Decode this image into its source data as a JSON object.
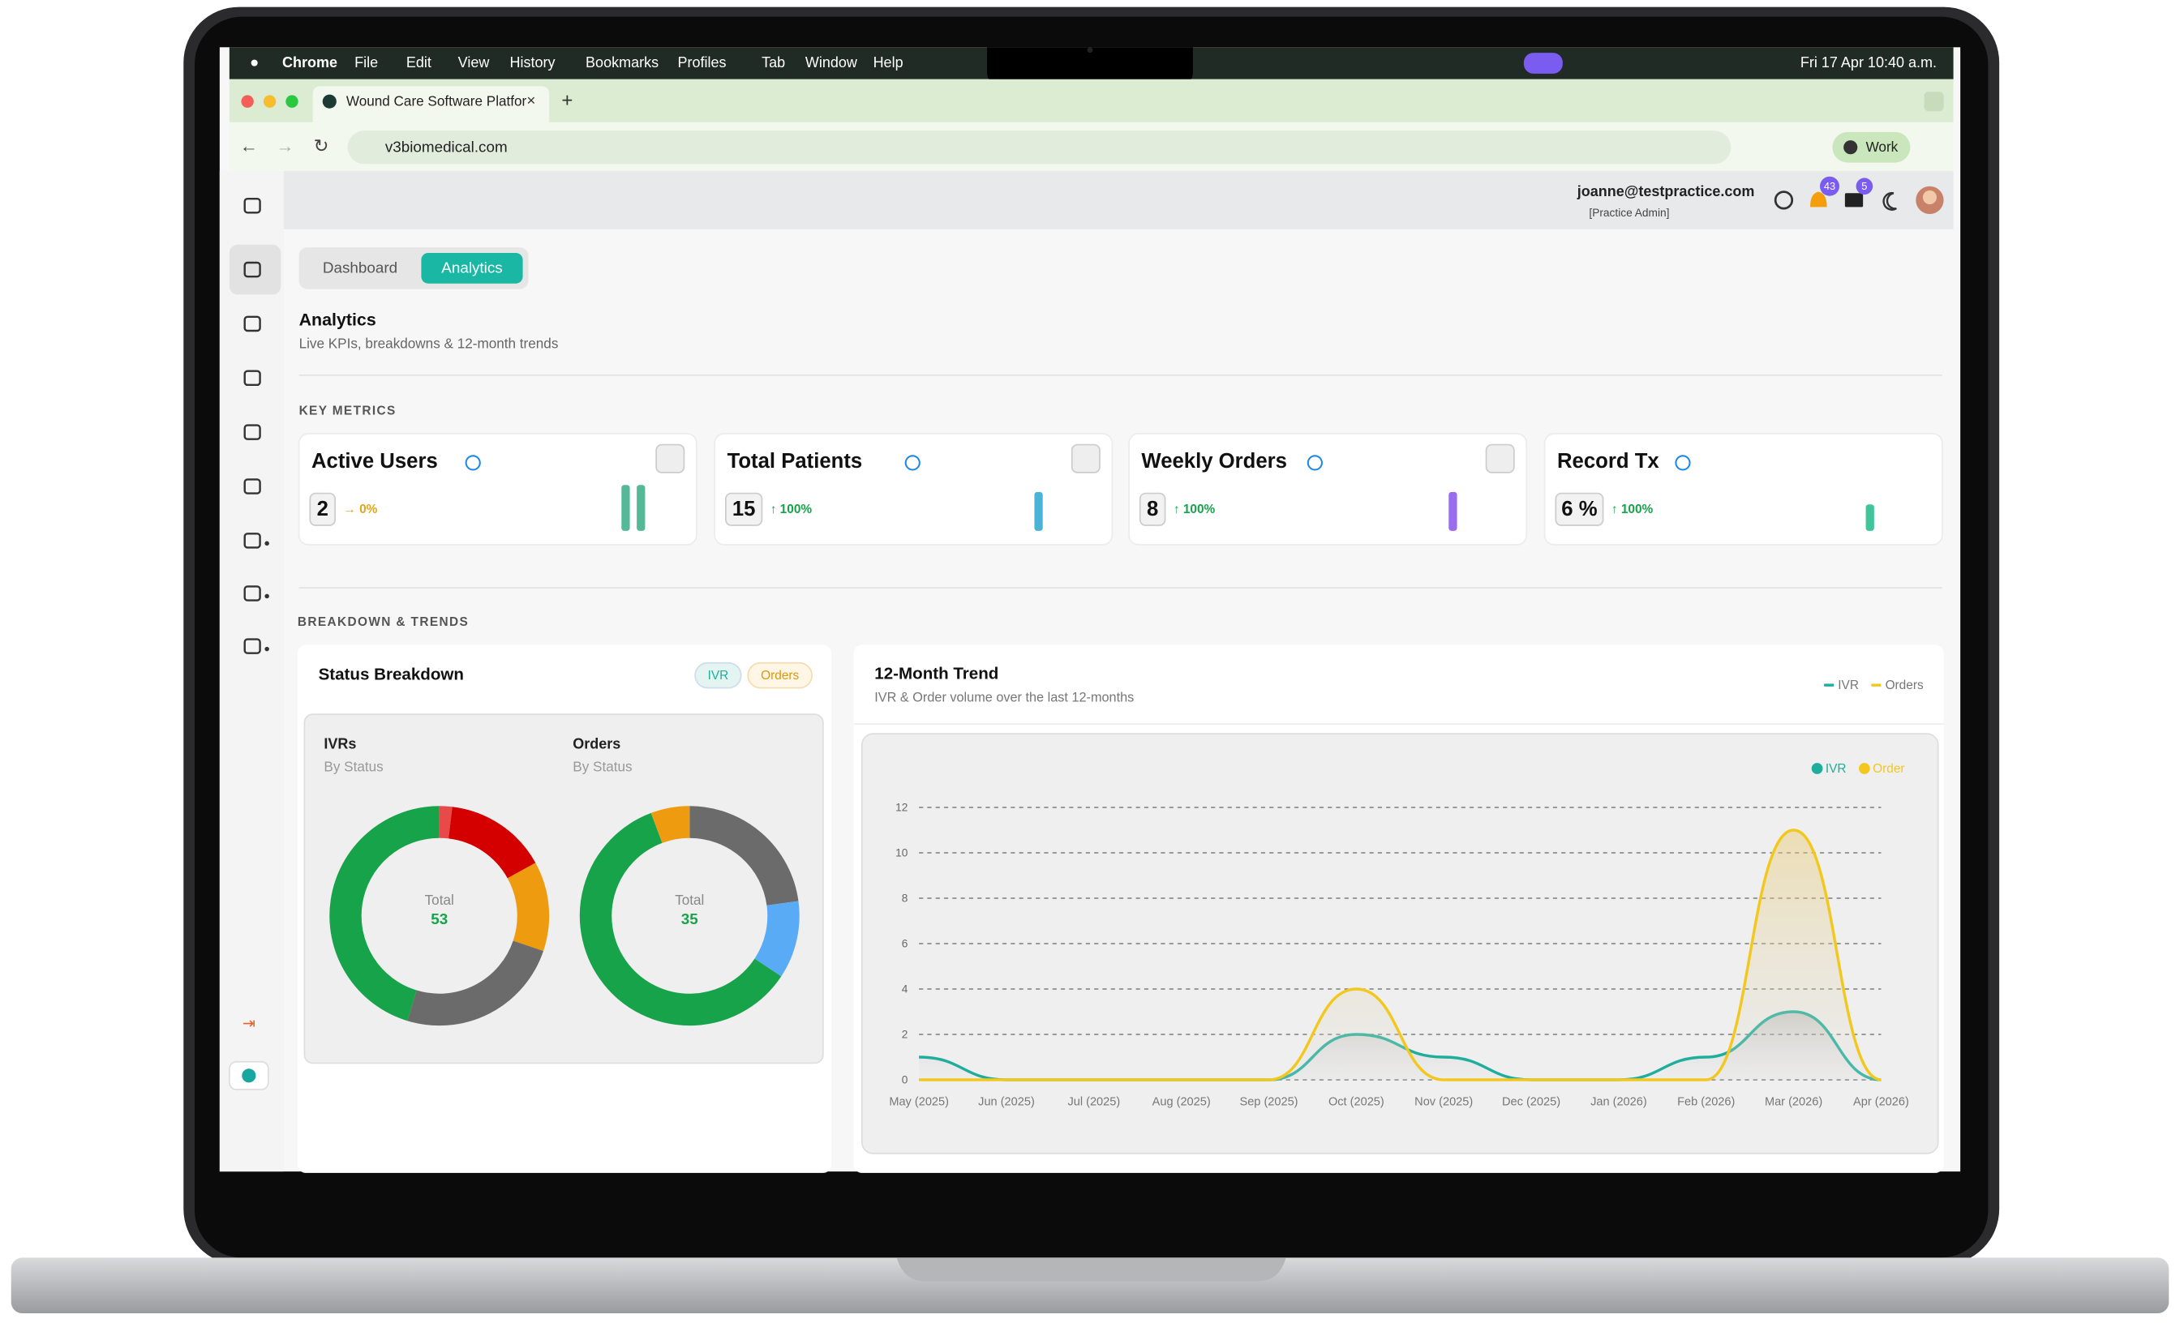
{
  "menubar": {
    "app": "Chrome",
    "items": [
      "File",
      "Edit",
      "View",
      "History",
      "Bookmarks",
      "Profiles",
      "Tab",
      "Window",
      "Help"
    ],
    "clock": "Fri 17 Apr 10:40 a.m."
  },
  "browser": {
    "tab_title": "Wound Care Software Platfor",
    "url": "v3biomedical.com",
    "profile": "Work"
  },
  "header": {
    "user": "joanne@testpractice.com",
    "role": "[Practice Admin]",
    "notifications": "43",
    "messages": "5"
  },
  "tabs": [
    "Dashboard",
    "Analytics"
  ],
  "page": {
    "title": "Analytics",
    "subtitle": "Live KPIs, breakdowns & 12-month trends"
  },
  "key_metrics": {
    "heading": "KEY METRICS",
    "cards": [
      {
        "title": "Active Users",
        "value": "2",
        "change": "→ 0%"
      },
      {
        "title": "Total Patients",
        "value": "15",
        "change": "↑ 100%"
      },
      {
        "title": "Weekly Orders",
        "value": "8",
        "change": "↑ 100%"
      },
      {
        "title": "Record Tx",
        "value": "6 %",
        "change": "↑ 100%"
      }
    ]
  },
  "breakdown": {
    "heading": "BREAKDOWN & TRENDS",
    "status": {
      "title": "Status Breakdown",
      "pills": [
        "IVR",
        "Orders"
      ],
      "donuts": [
        {
          "title": "IVRs",
          "subtitle": "By Status",
          "total_label": "Total",
          "total": 53,
          "values": [
            1,
            8,
            7,
            13,
            24
          ],
          "colors": [
            "#e84a4a",
            "#d40000",
            "#ef9b0f",
            "#6b6b6b",
            "#16a34a"
          ]
        },
        {
          "title": "Orders",
          "subtitle": "By Status",
          "total_label": "Total",
          "total": 35,
          "values": [
            8,
            4,
            21,
            2
          ],
          "colors": [
            "#6b6b6b",
            "#5aabf5",
            "#16a34a",
            "#ef9b0f"
          ]
        }
      ]
    },
    "trend": {
      "title": "12-Month Trend",
      "subtitle": "IVR & Order volume over the last 12-months",
      "legend": [
        "IVR",
        "Orders"
      ],
      "chart": {
        "type": "line",
        "x": [
          "May (2025)",
          "Jun (2025)",
          "Jul (2025)",
          "Aug (2025)",
          "Sep (2025)",
          "Oct (2025)",
          "Nov (2025)",
          "Dec (2025)",
          "Jan (2026)",
          "Feb (2026)",
          "Mar (2026)",
          "Apr (2026)"
        ],
        "series": [
          {
            "name": "IVR",
            "color": "#1fae9c",
            "values": [
              1,
              0,
              0,
              0,
              0,
              2,
              1,
              0,
              0,
              1,
              3,
              0
            ]
          },
          {
            "name": "Order",
            "color": "#f2c81f",
            "values": [
              0,
              0,
              0,
              0,
              0,
              4,
              0,
              0,
              0,
              0,
              11,
              0
            ]
          }
        ],
        "ylim": [
          0,
          12
        ],
        "yticks": [
          0,
          2,
          4,
          6,
          8,
          10,
          12
        ],
        "grid": true,
        "legend": "top-right"
      }
    }
  }
}
